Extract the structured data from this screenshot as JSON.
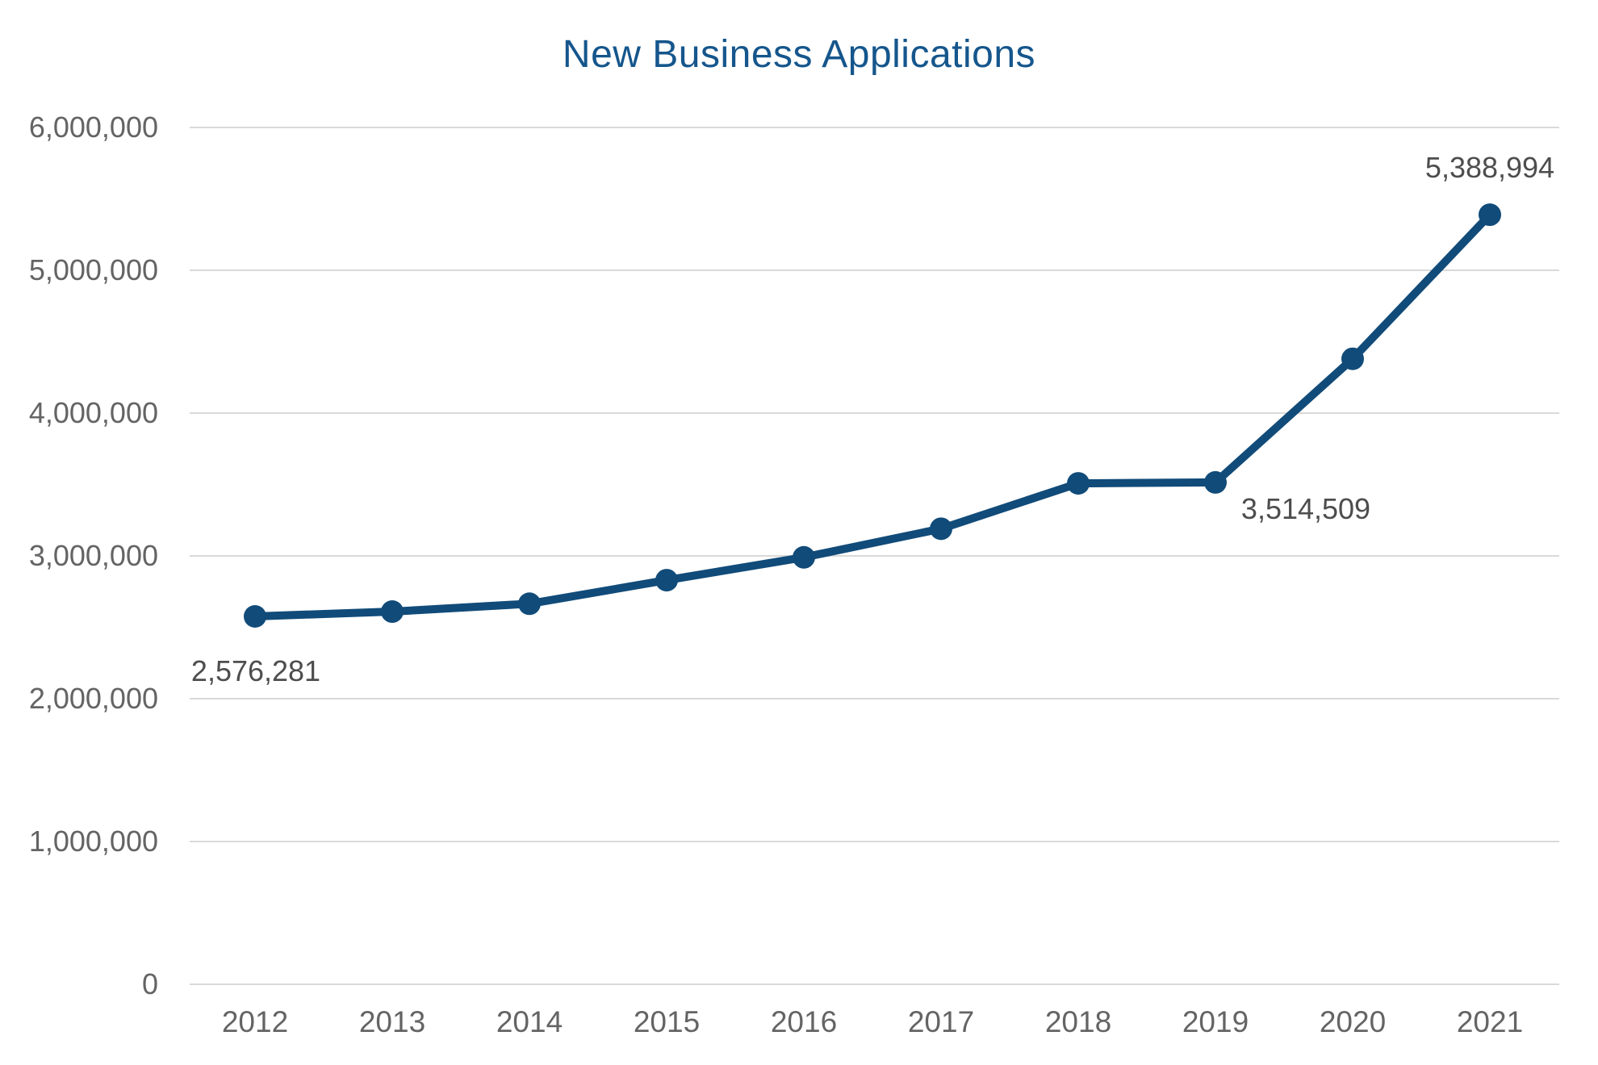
{
  "chart_data": {
    "type": "line",
    "title": "New Business Applications",
    "xlabel": "",
    "ylabel": "",
    "legend": "none",
    "grid": "horizontal",
    "ylim": [
      0,
      6000000
    ],
    "categories": [
      "2012",
      "2013",
      "2014",
      "2015",
      "2016",
      "2017",
      "2018",
      "2019",
      "2020",
      "2021"
    ],
    "series": [
      {
        "name": "New Business Applications",
        "values": [
          2576281,
          2610000,
          2665000,
          2830000,
          2990000,
          3190000,
          3508000,
          3514509,
          4380000,
          5388994
        ]
      }
    ],
    "point_labels": [
      {
        "index": 0,
        "text": "2,576,281",
        "placement": "below"
      },
      {
        "index": 7,
        "text": "3,514,509",
        "placement": "below-right"
      },
      {
        "index": 9,
        "text": "5,388,994",
        "placement": "above"
      }
    ],
    "y_ticks": [
      {
        "value": 0,
        "label": "0"
      },
      {
        "value": 1000000,
        "label": "1,000,000"
      },
      {
        "value": 2000000,
        "label": "2,000,000"
      },
      {
        "value": 3000000,
        "label": "3,000,000"
      },
      {
        "value": 4000000,
        "label": "4,000,000"
      },
      {
        "value": 5000000,
        "label": "5,000,000"
      },
      {
        "value": 6000000,
        "label": "6,000,000"
      }
    ],
    "colors": {
      "title": "#15568c",
      "line": "#114b79",
      "marker": "#114b79",
      "gridline": "#d9d9d9",
      "tick_label": "#646464",
      "point_label": "#4d4d4d",
      "background": "#ffffff"
    }
  }
}
